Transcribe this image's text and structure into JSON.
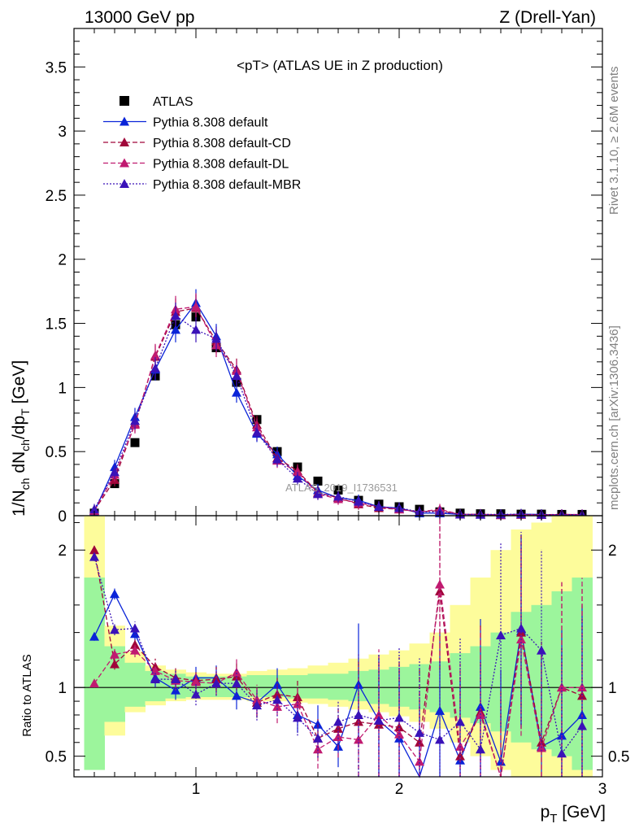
{
  "header": {
    "left": "13000 GeV pp",
    "right": "Z (Drell-Yan)"
  },
  "side_labels": {
    "rivet": "Rivet 3.1.10, ≥ 2.6M events",
    "mcplots": "mcplots.cern.ch [arXiv:1306.3436]"
  },
  "watermark": "ATLAS_2019_I1736531",
  "colors": {
    "data": "#000000",
    "default": "#0a24d8",
    "cd": "#a0063a",
    "dl": "#c01a70",
    "mbr": "#3a12b8",
    "band_green": "#9cf59c",
    "band_yellow": "#fdfc9b"
  },
  "chart_data": [
    {
      "type": "scatter",
      "title": "<pT> (ATLAS UE in Z production)",
      "xlabel": "p_T [GeV]",
      "ylabel": "1/N_ch dN_ch/dp_T [GeV]",
      "xlim": [
        0.4,
        3.0
      ],
      "ylim": [
        0,
        3.8
      ],
      "yticks": [
        "0",
        "0.5",
        "1",
        "1.5",
        "2",
        "2.5",
        "3",
        "3.5"
      ],
      "legend": "top-left",
      "legend_entries": [
        "ATLAS",
        "Pythia 8.308 default",
        "Pythia 8.308 default-CD",
        "Pythia 8.308 default-DL",
        "Pythia 8.308 default-MBR"
      ],
      "x": [
        0.5,
        0.6,
        0.7,
        0.8,
        0.9,
        1.0,
        1.1,
        1.2,
        1.3,
        1.4,
        1.5,
        1.6,
        1.7,
        1.8,
        1.9,
        2.0,
        2.1,
        2.2,
        2.3,
        2.4,
        2.5,
        2.6,
        2.7,
        2.8,
        2.9
      ],
      "series": [
        {
          "name": "ATLAS",
          "values": [
            0.02,
            0.25,
            0.57,
            1.09,
            1.49,
            1.55,
            1.31,
            1.04,
            0.75,
            0.5,
            0.38,
            0.27,
            0.2,
            0.12,
            0.09,
            0.07,
            0.05,
            0.03,
            0.02,
            0.015,
            0.015,
            0.012,
            0.012,
            0.01,
            0.01
          ]
        },
        {
          "name": "Pythia 8.308 default",
          "values": [
            0.03,
            0.38,
            0.77,
            1.14,
            1.45,
            1.66,
            1.4,
            0.96,
            0.64,
            0.48,
            0.31,
            0.2,
            0.14,
            0.12,
            0.07,
            0.06,
            0.02,
            0.02,
            0.01,
            0.008,
            0.007,
            0.012,
            0.01,
            0.005,
            0.004
          ]
        },
        {
          "name": "Pythia 8.308 default-CD",
          "values": [
            0.04,
            0.28,
            0.72,
            1.24,
            1.59,
            1.62,
            1.36,
            1.14,
            0.71,
            0.45,
            0.35,
            0.18,
            0.14,
            0.09,
            0.06,
            0.05,
            0.03,
            0.04,
            0.01,
            0.01,
            0.005,
            0.008,
            0.008,
            0.01,
            0.008
          ]
        },
        {
          "name": "Pythia 8.308 default-DL",
          "values": [
            0.04,
            0.32,
            0.71,
            1.25,
            1.61,
            1.63,
            1.33,
            1.13,
            0.69,
            0.43,
            0.34,
            0.17,
            0.13,
            0.1,
            0.07,
            0.05,
            0.03,
            0.05,
            0.01,
            0.012,
            0.006,
            0.01,
            0.006,
            0.01,
            0.009
          ]
        },
        {
          "name": "Pythia 8.308 default-MBR",
          "values": [
            0.05,
            0.34,
            0.74,
            1.15,
            1.56,
            1.45,
            1.38,
            1.09,
            0.65,
            0.44,
            0.29,
            0.17,
            0.15,
            0.11,
            0.07,
            0.06,
            0.03,
            0.03,
            0.01,
            0.01,
            0.01,
            0.012,
            0.008,
            0.008,
            0.007
          ]
        }
      ]
    },
    {
      "type": "line",
      "ylabel": "Ratio to ATLAS",
      "xlabel": "p_T [GeV]",
      "xlim": [
        0.4,
        3.0
      ],
      "ylim": [
        0.35,
        2.25
      ],
      "yticks": [
        "0.5",
        "1",
        "2"
      ],
      "xticks": [
        "1",
        "2",
        "3"
      ],
      "x": [
        0.5,
        0.6,
        0.7,
        0.8,
        0.9,
        1.0,
        1.1,
        1.2,
        1.3,
        1.4,
        1.5,
        1.6,
        1.7,
        1.8,
        1.9,
        2.0,
        2.1,
        2.2,
        2.3,
        2.4,
        2.5,
        2.6,
        2.7,
        2.8,
        2.9
      ],
      "band_green": [
        [
          0.4,
          1.8
        ],
        [
          0.75,
          1.3
        ],
        [
          0.86,
          1.18
        ],
        [
          0.9,
          1.12
        ],
        [
          0.92,
          1.1
        ],
        [
          0.93,
          1.08
        ],
        [
          0.93,
          1.08
        ],
        [
          0.93,
          1.08
        ],
        [
          0.93,
          1.09
        ],
        [
          0.93,
          1.09
        ],
        [
          0.92,
          1.09
        ],
        [
          0.92,
          1.1
        ],
        [
          0.91,
          1.1
        ],
        [
          0.9,
          1.12
        ],
        [
          0.88,
          1.13
        ],
        [
          0.86,
          1.15
        ],
        [
          0.84,
          1.17
        ],
        [
          0.82,
          1.19
        ],
        [
          0.78,
          1.25
        ],
        [
          0.74,
          1.3
        ],
        [
          0.68,
          1.4
        ],
        [
          0.6,
          1.55
        ],
        [
          0.55,
          1.6
        ],
        [
          0.5,
          1.7
        ],
        [
          0.4,
          1.8
        ]
      ],
      "band_yellow": [
        [
          0.4,
          2.25
        ],
        [
          0.65,
          1.45
        ],
        [
          0.82,
          1.26
        ],
        [
          0.87,
          1.16
        ],
        [
          0.9,
          1.13
        ],
        [
          0.91,
          1.11
        ],
        [
          0.91,
          1.1
        ],
        [
          0.91,
          1.1
        ],
        [
          0.9,
          1.12
        ],
        [
          0.9,
          1.13
        ],
        [
          0.89,
          1.14
        ],
        [
          0.88,
          1.16
        ],
        [
          0.86,
          1.18
        ],
        [
          0.84,
          1.21
        ],
        [
          0.82,
          1.24
        ],
        [
          0.79,
          1.27
        ],
        [
          0.75,
          1.32
        ],
        [
          0.7,
          1.4
        ],
        [
          0.6,
          1.6
        ],
        [
          0.5,
          1.8
        ],
        [
          0.4,
          2.0
        ],
        [
          0.35,
          2.15
        ],
        [
          0.35,
          2.2
        ],
        [
          0.35,
          2.25
        ],
        [
          0.35,
          2.25
        ]
      ],
      "series": [
        {
          "name": "Pythia 8.308 default",
          "values": [
            1.37,
            1.68,
            1.39,
            1.07,
            0.98,
            1.07,
            1.07,
            0.94,
            0.89,
            1.02,
            0.8,
            0.73,
            0.57,
            1.02,
            0.76,
            0.63,
            0.33,
            0.83,
            0.47,
            0.86,
            0.46,
            1.41,
            0.57,
            0.65,
            0.8
          ]
        },
        {
          "name": "Pythia 8.308 default-CD",
          "values": [
            2.0,
            1.17,
            1.31,
            1.15,
            1.07,
            1.05,
            1.06,
            1.08,
            0.89,
            0.95,
            0.93,
            0.63,
            0.7,
            0.75,
            0.73,
            0.71,
            0.6,
            1.7,
            0.5,
            0.82,
            0.3,
            1.4,
            0.6,
            1.0,
            0.94
          ]
        },
        {
          "name": "Pythia 8.308 default-DL",
          "values": [
            1.03,
            1.24,
            1.27,
            1.12,
            1.05,
            1.04,
            1.03,
            1.11,
            0.91,
            0.86,
            0.88,
            0.55,
            0.64,
            0.62,
            0.8,
            0.66,
            0.46,
            1.75,
            0.57,
            0.8,
            0.28,
            1.35,
            0.56,
            1.0,
            1.0
          ]
        },
        {
          "name": "Pythia 8.308 default-MBR",
          "values": [
            1.95,
            1.42,
            1.43,
            1.06,
            1.06,
            0.95,
            1.03,
            1.03,
            0.87,
            0.91,
            0.78,
            0.63,
            0.75,
            0.8,
            0.76,
            0.78,
            0.67,
            0.62,
            0.75,
            0.55,
            1.38,
            1.43,
            1.27,
            0.52,
            0.72
          ]
        }
      ]
    }
  ]
}
